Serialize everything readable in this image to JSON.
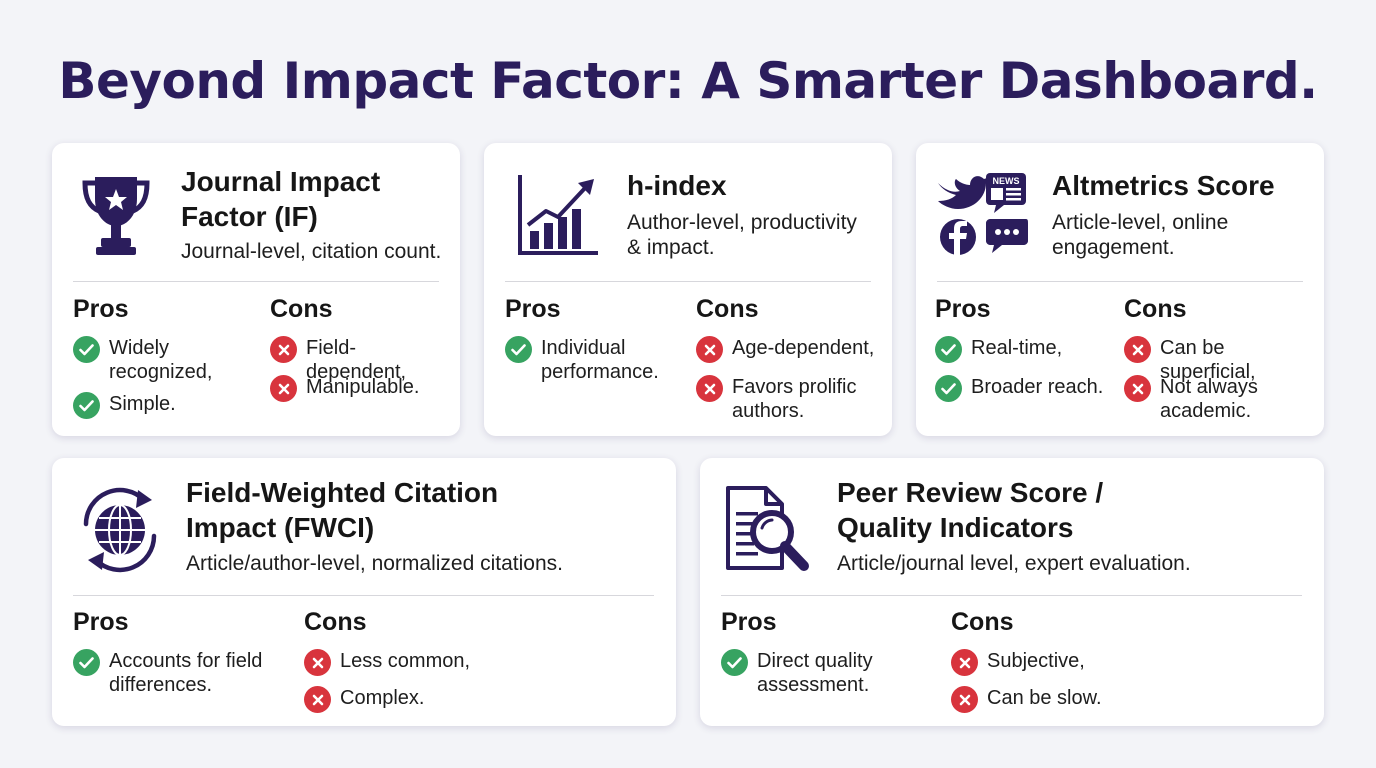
{
  "header": {
    "title": "Beyond Impact Factor: A Smarter Dashboard."
  },
  "labels": {
    "pros": "Pros",
    "cons": "Cons"
  },
  "colors": {
    "title": "#2b1d5c",
    "icon": "#2b1d5c",
    "pro": "#37a361",
    "con": "#d8343d"
  },
  "cards": [
    {
      "icon": "trophy-icon",
      "title": "Journal Impact\nFactor (IF)",
      "subtitle": "Journal-level, citation count.",
      "pros": [
        "Widely\nrecognized,",
        "Simple."
      ],
      "cons": [
        "Field-\ndependent,",
        "Manipulable."
      ]
    },
    {
      "icon": "bar-chart-growth-icon",
      "title": "h-index",
      "subtitle": "Author-level, productivity\n& impact.",
      "pros": [
        "Individual\nperformance."
      ],
      "cons": [
        "Age-dependent,",
        "Favors prolific\nauthors."
      ]
    },
    {
      "icon": "social-media-icons",
      "icon_badge": "NEWS",
      "title": "Altmetrics Score",
      "subtitle": "Article-level, online\nengagement.",
      "pros": [
        "Real-time,",
        "Broader reach."
      ],
      "cons": [
        "Can be superficial,",
        "Not always\nacademic."
      ]
    },
    {
      "icon": "globe-cycle-icon",
      "title": "Field-Weighted Citation\nImpact (FWCI)",
      "subtitle": "Article/author-level, normalized citations.",
      "pros": [
        "Accounts for field\ndifferences."
      ],
      "cons": [
        "Less common,",
        "Complex."
      ]
    },
    {
      "icon": "document-magnifier-icon",
      "title": "Peer Review Score /\nQuality Indicators",
      "subtitle": "Article/journal level, expert evaluation.",
      "pros": [
        "Direct quality\nassessment."
      ],
      "cons": [
        "Subjective,",
        "Can be slow."
      ]
    }
  ]
}
